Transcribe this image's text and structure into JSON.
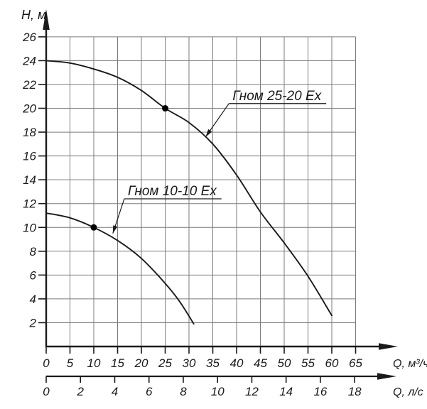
{
  "chart_data": {
    "type": "line",
    "title": "",
    "ylabel": "H, м",
    "xlabel_primary": "Q, м³/ч",
    "xlabel_secondary": "Q, л/с",
    "y_ticks": [
      2,
      4,
      6,
      8,
      10,
      12,
      14,
      16,
      18,
      20,
      22,
      24,
      26
    ],
    "x_primary_ticks": [
      0,
      5,
      10,
      15,
      20,
      25,
      30,
      35,
      40,
      45,
      50,
      55,
      60,
      65
    ],
    "x_secondary_ticks": [
      0,
      2,
      4,
      6,
      8,
      10,
      12,
      14,
      16,
      18
    ],
    "x_range_primary": [
      0,
      65
    ],
    "x_range_secondary": [
      0,
      18
    ],
    "y_range": [
      0,
      26
    ],
    "secondary_to_primary_factor": 3.6,
    "grid": "on",
    "legend": "none",
    "colors": {
      "axis": "#1a1a1a",
      "grid": "#7b7b7b",
      "curve": "#1a1a1a",
      "marker": "#000000",
      "text": "#1a1a1a",
      "background": "#ffffff"
    },
    "series": [
      {
        "name": "Гном 25-20 Ех",
        "points": [
          [
            0,
            24
          ],
          [
            5,
            23.8
          ],
          [
            10,
            23.3
          ],
          [
            15,
            22.6
          ],
          [
            20,
            21.5
          ],
          [
            25,
            20
          ],
          [
            30,
            18.8
          ],
          [
            35,
            17.0
          ],
          [
            40,
            14.4
          ],
          [
            45,
            11.3
          ],
          [
            50,
            8.7
          ],
          [
            55,
            5.9
          ],
          [
            60,
            2.6
          ]
        ],
        "operating_point": [
          25,
          20
        ]
      },
      {
        "name": "Гном 10-10 Ех",
        "points": [
          [
            0,
            11.2
          ],
          [
            5,
            10.8
          ],
          [
            10,
            10
          ],
          [
            15,
            8.9
          ],
          [
            20,
            7.4
          ],
          [
            25,
            5.3
          ],
          [
            28,
            3.8
          ],
          [
            31,
            1.9
          ]
        ],
        "operating_point": [
          10,
          10
        ]
      }
    ],
    "annotations": [
      {
        "text": "Гном 25-20 Ех",
        "target": [
          33.5,
          17.6
        ],
        "label_anchor": [
          38.4,
          20.4
        ]
      },
      {
        "text": "Гном 10-10 Ех",
        "target": [
          14.0,
          9.5
        ],
        "label_anchor": [
          16.4,
          12.4
        ]
      }
    ]
  }
}
